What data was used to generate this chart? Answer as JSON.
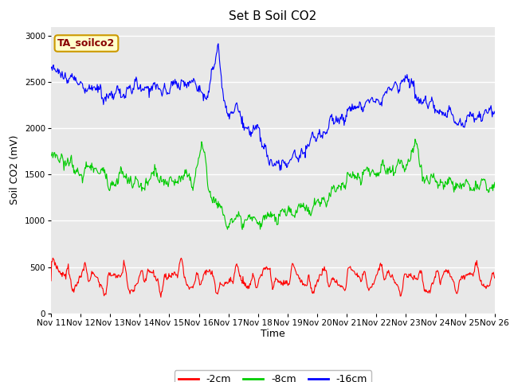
{
  "title": "Set B Soil CO2",
  "xlabel": "Time",
  "ylabel": "Soil CO2 (mV)",
  "legend_label": "TA_soilco2",
  "series_labels": [
    "-2cm",
    "-8cm",
    "-16cm"
  ],
  "series_colors": [
    "#ff0000",
    "#00cc00",
    "#0000ff"
  ],
  "ylim": [
    0,
    3100
  ],
  "yticks": [
    0,
    500,
    1000,
    1500,
    2000,
    2500,
    3000
  ],
  "xtick_labels": [
    "Nov 11",
    "Nov 12",
    "Nov 13",
    "Nov 14",
    "Nov 15",
    "Nov 16",
    "Nov 17",
    "Nov 18",
    "Nov 19",
    "Nov 20",
    "Nov 21",
    "Nov 22",
    "Nov 23",
    "Nov 24",
    "Nov 25",
    "Nov 26"
  ],
  "bg_color": "#e8e8e8",
  "fig_bg_color": "#ffffff",
  "title_fontsize": 11,
  "axis_label_fontsize": 9,
  "tick_fontsize": 7.5,
  "legend_fontsize": 9,
  "legend_box_color": "#ffffcc",
  "legend_box_edge": "#cc9900",
  "legend_label_color": "#880000"
}
